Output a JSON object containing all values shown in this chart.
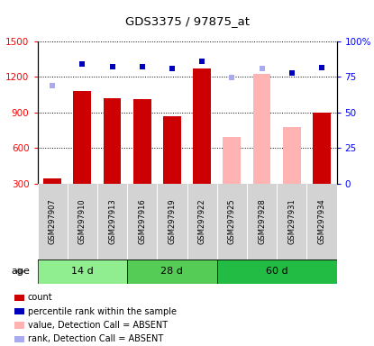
{
  "title": "GDS3375 / 97875_at",
  "samples": [
    "GSM297907",
    "GSM297910",
    "GSM297913",
    "GSM297916",
    "GSM297919",
    "GSM297922",
    "GSM297925",
    "GSM297928",
    "GSM297931",
    "GSM297934"
  ],
  "groups": [
    {
      "label": "14 d",
      "color": "#90EE90",
      "start": 0,
      "end": 2
    },
    {
      "label": "28 d",
      "color": "#55CC55",
      "start": 3,
      "end": 5
    },
    {
      "label": "60 d",
      "color": "#22BB44",
      "start": 6,
      "end": 9
    }
  ],
  "bar_values": [
    340,
    1080,
    1020,
    1010,
    870,
    1270,
    690,
    1230,
    780,
    900
  ],
  "bar_colors": [
    "#CC0000",
    "#CC0000",
    "#CC0000",
    "#CC0000",
    "#CC0000",
    "#CC0000",
    "#FFB3B3",
    "#FFB3B3",
    "#FFB3B3",
    "#CC0000"
  ],
  "rank_values": [
    1130,
    1310,
    1285,
    1290,
    1270,
    1335,
    1195,
    1275,
    1235,
    1280
  ],
  "rank_colors": [
    "#AAAAEE",
    "#0000BB",
    "#0000BB",
    "#0000BB",
    "#0000BB",
    "#0000BB",
    "#AAAAEE",
    "#AAAAEE",
    "#0000BB",
    "#0000BB"
  ],
  "ylim_left": [
    300,
    1500
  ],
  "ylim_right": [
    0,
    100
  ],
  "yticks_left": [
    300,
    600,
    900,
    1200,
    1500
  ],
  "yticks_right": [
    0,
    25,
    50,
    75,
    100
  ],
  "ytick_right_labels": [
    "0",
    "25",
    "50",
    "75",
    "100%"
  ],
  "legend_items": [
    {
      "color": "#CC0000",
      "label": "count"
    },
    {
      "color": "#0000BB",
      "label": "percentile rank within the sample"
    },
    {
      "color": "#FFB3B3",
      "label": "value, Detection Call = ABSENT"
    },
    {
      "color": "#AAAAEE",
      "label": "rank, Detection Call = ABSENT"
    }
  ]
}
